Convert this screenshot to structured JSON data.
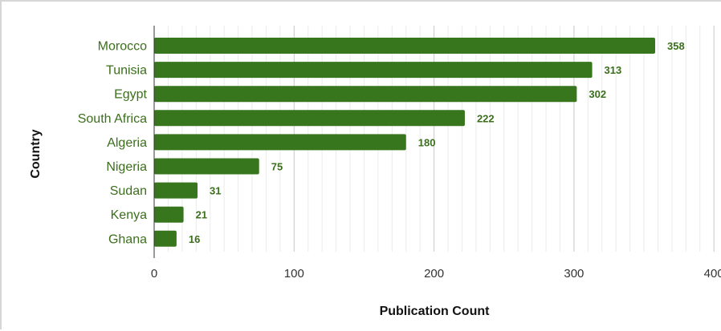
{
  "chart_data": {
    "type": "bar",
    "orientation": "horizontal",
    "categories": [
      "Morocco",
      "Tunisia",
      "Egypt",
      "South Africa",
      "Algeria",
      "Nigeria",
      "Sudan",
      "Kenya",
      "Ghana"
    ],
    "values": [
      358,
      313,
      302,
      222,
      180,
      75,
      31,
      21,
      16
    ],
    "xlabel": "Publication Count",
    "ylabel": "Country",
    "xlim": [
      0,
      400
    ],
    "xticks": [
      "0",
      "100",
      "200",
      "300",
      "400"
    ],
    "grid": true,
    "legend": "none",
    "bar_color": "#37761d",
    "label_color": "#3b6f1c"
  }
}
